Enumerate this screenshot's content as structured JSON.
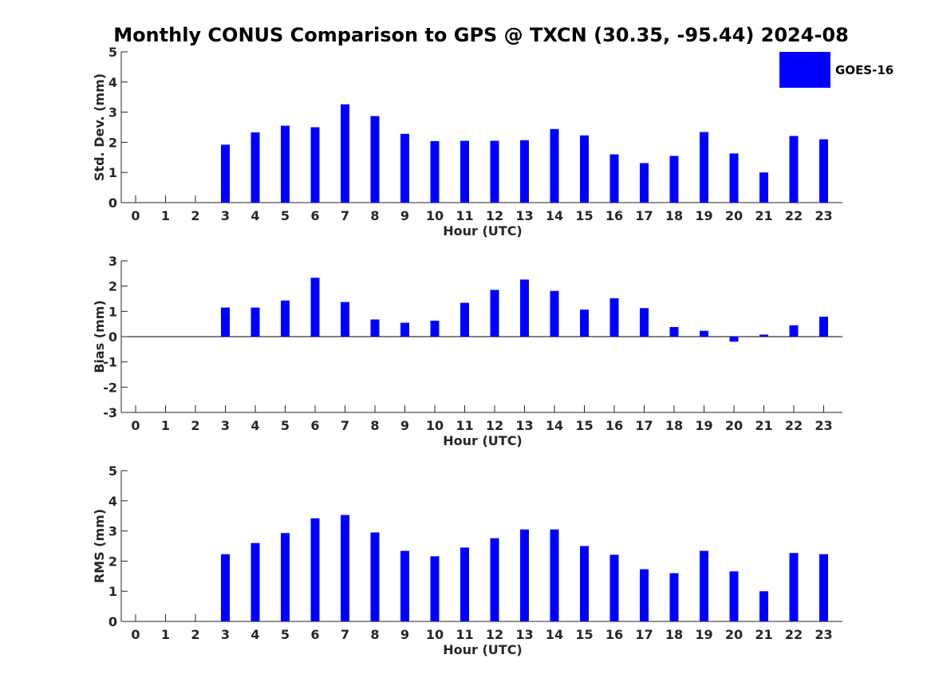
{
  "title": "Monthly CONUS Comparison to GPS @ TXCN (30.35, -95.44) 2024-08",
  "legend": {
    "label": "GOES-16",
    "color": "#0000ff"
  },
  "chart_data": [
    {
      "type": "bar",
      "ylabel": "Std. Dev. (mm)",
      "xlabel": "Hour (UTC)",
      "categories": [
        "0",
        "1",
        "2",
        "3",
        "4",
        "5",
        "6",
        "7",
        "8",
        "9",
        "10",
        "11",
        "12",
        "13",
        "14",
        "15",
        "16",
        "17",
        "18",
        "19",
        "20",
        "21",
        "22",
        "23"
      ],
      "values": [
        null,
        null,
        null,
        1.92,
        2.33,
        2.55,
        2.5,
        3.26,
        2.87,
        2.28,
        2.04,
        2.05,
        2.05,
        2.07,
        2.44,
        2.23,
        1.6,
        1.31,
        1.55,
        2.34,
        1.63,
        1.0,
        2.21,
        2.1
      ],
      "ylim": [
        0,
        5
      ],
      "yticks": [
        "0",
        "1",
        "2",
        "3",
        "4",
        "5"
      ],
      "color": "#0000ff"
    },
    {
      "type": "bar",
      "ylabel": "Bias (mm)",
      "xlabel": "Hour (UTC)",
      "categories": [
        "0",
        "1",
        "2",
        "3",
        "4",
        "5",
        "6",
        "7",
        "8",
        "9",
        "10",
        "11",
        "12",
        "13",
        "14",
        "15",
        "16",
        "17",
        "18",
        "19",
        "20",
        "21",
        "22",
        "23"
      ],
      "values": [
        null,
        null,
        null,
        1.15,
        1.15,
        1.43,
        2.33,
        1.37,
        0.68,
        0.55,
        0.63,
        1.34,
        1.85,
        2.26,
        1.81,
        1.07,
        1.52,
        1.13,
        0.38,
        0.23,
        -0.2,
        0.08,
        0.45,
        0.79
      ],
      "ylim": [
        -3,
        3
      ],
      "yticks": [
        "-3",
        "-2",
        "-1",
        "0",
        "1",
        "2",
        "3"
      ],
      "color": "#0000ff"
    },
    {
      "type": "bar",
      "ylabel": "RMS (mm)",
      "xlabel": "Hour (UTC)",
      "categories": [
        "0",
        "1",
        "2",
        "3",
        "4",
        "5",
        "6",
        "7",
        "8",
        "9",
        "10",
        "11",
        "12",
        "13",
        "14",
        "15",
        "16",
        "17",
        "18",
        "19",
        "20",
        "21",
        "22",
        "23"
      ],
      "values": [
        null,
        null,
        null,
        2.23,
        2.6,
        2.93,
        3.42,
        3.53,
        2.95,
        2.34,
        2.16,
        2.45,
        2.76,
        3.05,
        3.05,
        2.5,
        2.21,
        1.73,
        1.6,
        2.34,
        1.66,
        1.0,
        2.27,
        2.23
      ],
      "ylim": [
        0,
        5
      ],
      "yticks": [
        "0",
        "1",
        "2",
        "3",
        "4",
        "5"
      ],
      "color": "#0000ff"
    }
  ]
}
